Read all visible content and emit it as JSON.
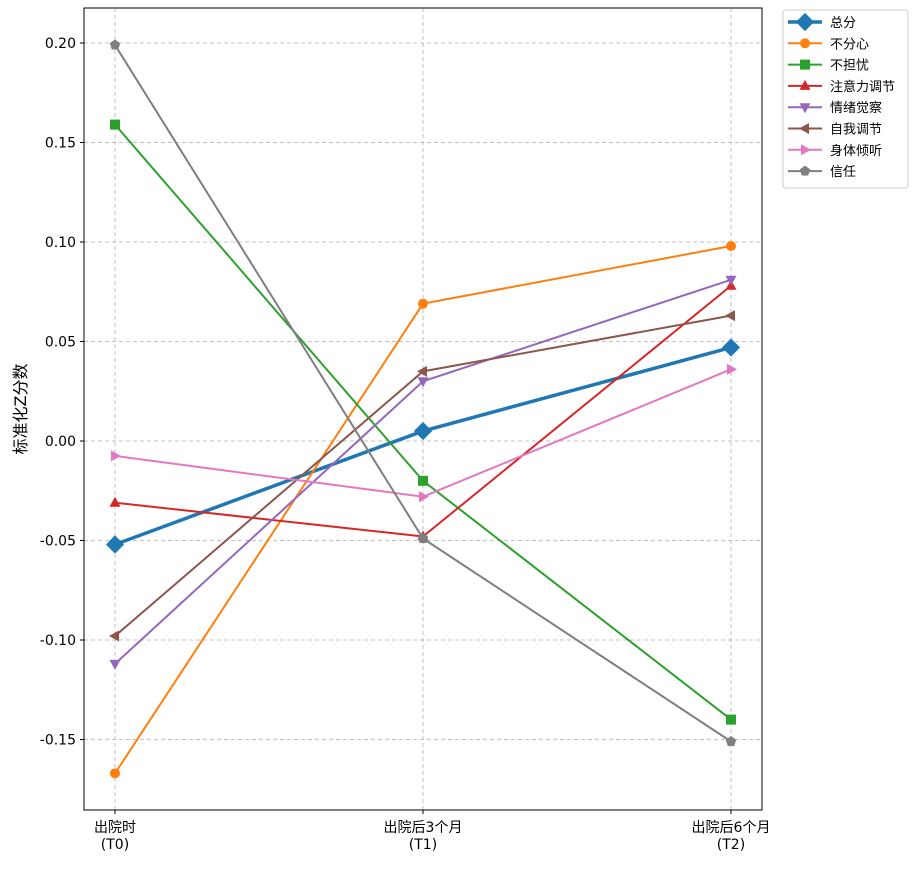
{
  "chart_data": {
    "type": "line",
    "title": "",
    "xlabel": "",
    "ylabel": "标准化Z分数",
    "categories": [
      "出院时\n(T0)",
      "出院后3个月\n(T1)",
      "出院后6个月\n(T2)"
    ],
    "ylim": [
      -0.185,
      0.218
    ],
    "yticks": [
      -0.15,
      -0.1,
      -0.05,
      0.0,
      0.05,
      0.1,
      0.15,
      0.2
    ],
    "ytick_labels": [
      "-0.15",
      "-0.10",
      "-0.05",
      "0.00",
      "0.05",
      "0.10",
      "0.15",
      "0.20"
    ],
    "grid": true,
    "legend_position": "outside-top-right",
    "series": [
      {
        "name": "总分",
        "color": "#1f77b4",
        "marker": "diamond",
        "values": [
          -0.052,
          0.005,
          0.047
        ]
      },
      {
        "name": "不分心",
        "color": "#ff7f0e",
        "marker": "circle",
        "values": [
          -0.167,
          0.069,
          0.098
        ]
      },
      {
        "name": "不担忧",
        "color": "#2ca02c",
        "marker": "square",
        "values": [
          0.159,
          -0.02,
          -0.14
        ]
      },
      {
        "name": "注意力调节",
        "color": "#d62728",
        "marker": "triangle-up",
        "values": [
          -0.031,
          -0.048,
          0.078
        ]
      },
      {
        "name": "情绪觉察",
        "color": "#9467bd",
        "marker": "triangle-down",
        "values": [
          -0.112,
          0.03,
          0.081
        ]
      },
      {
        "name": "自我调节",
        "color": "#8c564b",
        "marker": "triangle-left",
        "values": [
          -0.098,
          0.035,
          0.063
        ]
      },
      {
        "name": "身体倾听",
        "color": "#e377c2",
        "marker": "triangle-right",
        "values": [
          -0.0075,
          -0.028,
          0.036
        ]
      },
      {
        "name": "信任",
        "color": "#7f7f7f",
        "marker": "pentagon",
        "values": [
          0.199,
          -0.049,
          -0.151
        ]
      }
    ]
  }
}
